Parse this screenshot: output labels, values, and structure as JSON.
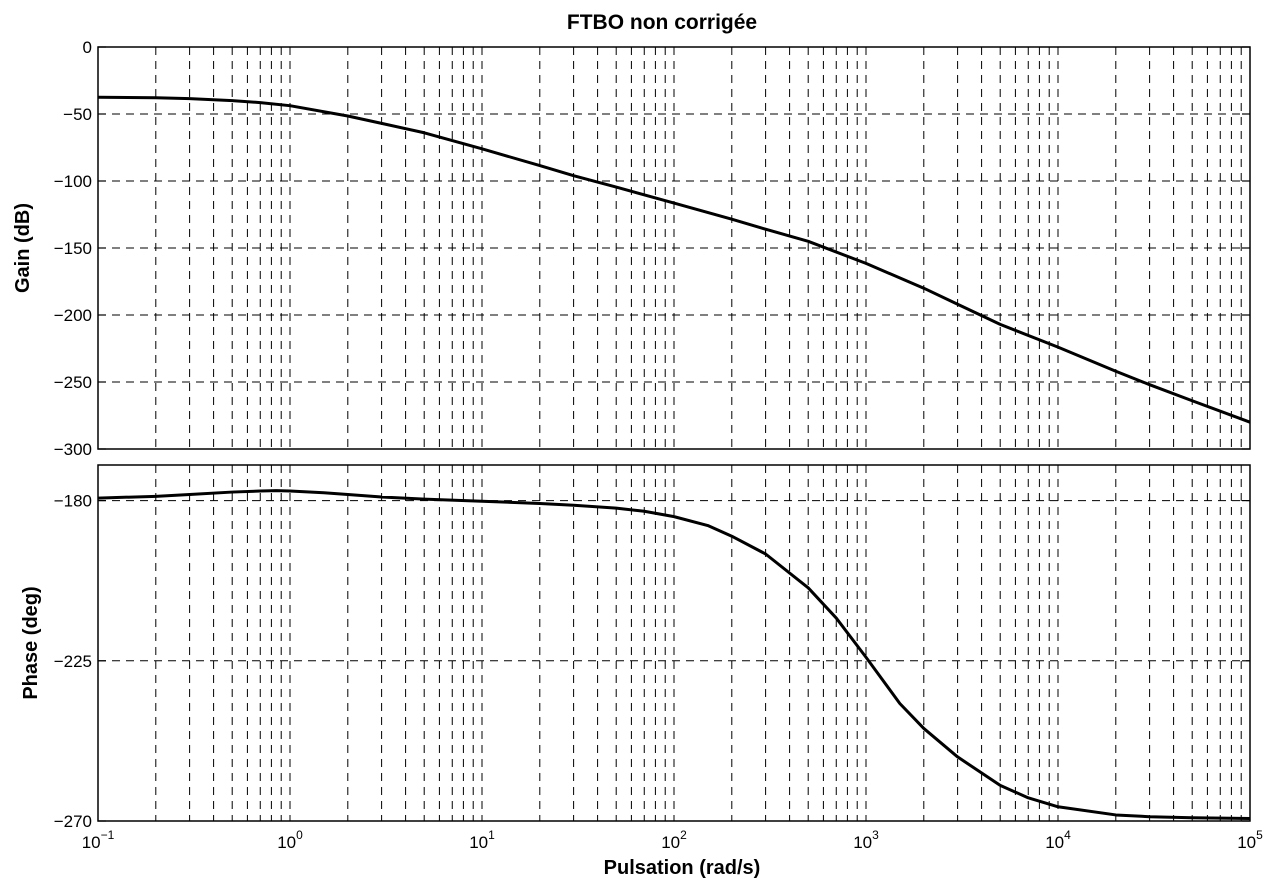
{
  "chart_data": {
    "type": "line",
    "title": "FTBO non corrigée",
    "xlabel": "Pulsation (rad/s)",
    "xscale": "log",
    "xlim": [
      0.1,
      100000
    ],
    "x_ticks": [
      {
        "base": "10",
        "exp": "−1"
      },
      {
        "base": "10",
        "exp": "0"
      },
      {
        "base": "10",
        "exp": "1"
      },
      {
        "base": "10",
        "exp": "2"
      },
      {
        "base": "10",
        "exp": "3"
      },
      {
        "base": "10",
        "exp": "4"
      },
      {
        "base": "10",
        "exp": "5"
      }
    ],
    "grid": true,
    "panels": [
      {
        "name": "gain",
        "ylabel": "Gain (dB)",
        "ylim": [
          -300,
          0
        ],
        "y_ticks": [
          "0",
          "−50",
          "−100",
          "−150",
          "−200",
          "−250",
          "−300"
        ],
        "series": [
          {
            "x": [
              0.1,
              0.2,
              0.3,
              0.5,
              0.7,
              1,
              2,
              3,
              5,
              10,
              20,
              30,
              50,
              100,
              200,
              300,
              500,
              1000,
              2000,
              3000,
              5000,
              10000,
              20000,
              30000,
              50000,
              100000
            ],
            "y": [
              -37.5,
              -37.9,
              -38.5,
              -40.0,
              -41.5,
              -43.8,
              -51.5,
              -57.0,
              -64.0,
              -76.0,
              -88.5,
              -96.0,
              -104.5,
              -116.5,
              -128.5,
              -136.0,
              -145.0,
              -161.5,
              -180.0,
              -192.0,
              -207.0,
              -224.0,
              -242.0,
              -252.0,
              -264.0,
              -280.0
            ]
          }
        ]
      },
      {
        "name": "phase",
        "ylabel": "Phase (deg)",
        "ylim": [
          -270,
          -170
        ],
        "y_ticks": [
          "−180",
          "−225",
          "−270"
        ],
        "series": [
          {
            "x": [
              0.1,
              0.2,
              0.3,
              0.5,
              0.7,
              0.85,
              1,
              1.5,
              2,
              3,
              5,
              10,
              20,
              30,
              50,
              70,
              100,
              150,
              200,
              300,
              500,
              700,
              1000,
              1500,
              2000,
              3000,
              5000,
              7000,
              10000,
              20000,
              30000,
              50000,
              100000
            ],
            "y": [
              -179.3,
              -178.8,
              -178.3,
              -177.6,
              -177.3,
              -177.2,
              -177.3,
              -177.8,
              -178.3,
              -179.0,
              -179.6,
              -180.2,
              -180.8,
              -181.3,
              -182.1,
              -183.0,
              -184.5,
              -187.0,
              -190.0,
              -195.0,
              -204.5,
              -213.0,
              -224.0,
              -237.0,
              -244.0,
              -252.0,
              -260.0,
              -263.5,
              -266.0,
              -268.3,
              -268.8,
              -269.1,
              -269.3
            ]
          }
        ]
      }
    ]
  }
}
